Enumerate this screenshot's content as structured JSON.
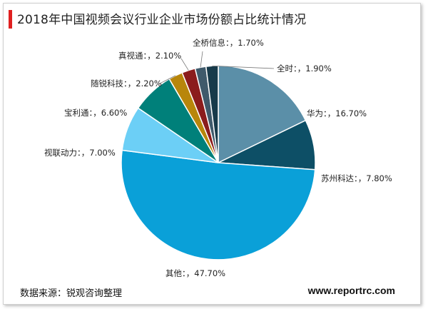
{
  "chart_data": {
    "type": "pie",
    "title": "2018年中国视频会议行业企业市场份额占比统计情况",
    "slices": [
      {
        "name": "华为",
        "value": 16.7,
        "label": "华为：，16.70%",
        "color": "#5b8fa8"
      },
      {
        "name": "苏州科达",
        "value": 7.8,
        "label": "苏州科达：，7.80%",
        "color": "#0d4f66"
      },
      {
        "name": "其他",
        "value": 47.7,
        "label": "其他：，47.70%",
        "color": "#0aa0d8"
      },
      {
        "name": "视联动力",
        "value": 7.0,
        "label": "视联动力：，7.00%",
        "color": "#6ccff6"
      },
      {
        "name": "宝利通",
        "value": 6.6,
        "label": "宝利通：，6.60%",
        "color": "#00807a"
      },
      {
        "name": "随锐科技",
        "value": 2.2,
        "label": "随锐科技：，2.20%",
        "color": "#b8860b"
      },
      {
        "name": "真视通",
        "value": 2.1,
        "label": "真视通：，2.10%",
        "color": "#8b1c1c"
      },
      {
        "name": "全桥信息",
        "value": 1.7,
        "label": "全桥信息：，1.70%",
        "color": "#3f5a6b"
      },
      {
        "name": "全时",
        "value": 1.9,
        "label": "全时：，1.90%",
        "color": "#173a4a"
      }
    ],
    "legend": "none"
  },
  "footer": {
    "source": "数据来源：锐观咨询整理",
    "website": "www.reportrc.com"
  }
}
